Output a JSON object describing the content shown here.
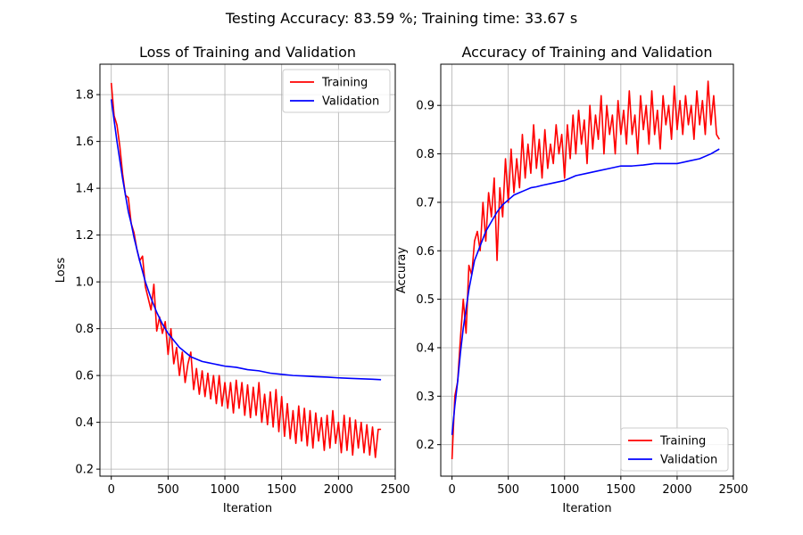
{
  "figure": {
    "suptitle": "Testing Accuracy: 83.59 %; Training time: 33.67 s"
  },
  "chart_data": [
    {
      "type": "line",
      "title": "Loss of Training and Validation",
      "xlabel": "Iteration",
      "ylabel": "Loss",
      "xlim": [
        -100,
        2500
      ],
      "ylim": [
        0.17,
        1.93
      ],
      "xticks": [
        0,
        500,
        1000,
        1500,
        2000,
        2500
      ],
      "yticks": [
        0.2,
        0.4,
        0.6,
        0.8,
        1.0,
        1.2,
        1.4,
        1.6,
        1.8
      ],
      "xtick_labels": [
        "0",
        "500",
        "1000",
        "1500",
        "2000",
        "2500"
      ],
      "ytick_labels": [
        "0.2",
        "0.4",
        "0.6",
        "0.8",
        "1.0",
        "1.2",
        "1.4",
        "1.6",
        "1.8"
      ],
      "grid": true,
      "legend_position": "top-right",
      "series": [
        {
          "name": "Training",
          "color": "#ff0000",
          "x": [
            0,
            25,
            50,
            75,
            100,
            125,
            150,
            175,
            200,
            225,
            250,
            275,
            300,
            325,
            350,
            375,
            400,
            425,
            450,
            475,
            500,
            525,
            550,
            575,
            600,
            625,
            650,
            675,
            700,
            725,
            750,
            775,
            800,
            825,
            850,
            875,
            900,
            925,
            950,
            975,
            1000,
            1025,
            1050,
            1075,
            1100,
            1125,
            1150,
            1175,
            1200,
            1225,
            1250,
            1275,
            1300,
            1325,
            1350,
            1375,
            1400,
            1425,
            1450,
            1475,
            1500,
            1525,
            1550,
            1575,
            1600,
            1625,
            1650,
            1675,
            1700,
            1725,
            1750,
            1775,
            1800,
            1825,
            1850,
            1875,
            1900,
            1925,
            1950,
            1975,
            2000,
            2025,
            2050,
            2075,
            2100,
            2125,
            2150,
            2175,
            2200,
            2225,
            2250,
            2275,
            2300,
            2325,
            2350,
            2375
          ],
          "values": [
            1.85,
            1.71,
            1.67,
            1.58,
            1.46,
            1.37,
            1.36,
            1.25,
            1.21,
            1.14,
            1.09,
            1.11,
            0.98,
            0.93,
            0.88,
            0.99,
            0.79,
            0.85,
            0.78,
            0.83,
            0.69,
            0.8,
            0.65,
            0.72,
            0.6,
            0.7,
            0.57,
            0.65,
            0.7,
            0.54,
            0.63,
            0.52,
            0.62,
            0.51,
            0.61,
            0.5,
            0.6,
            0.48,
            0.6,
            0.47,
            0.57,
            0.46,
            0.57,
            0.44,
            0.58,
            0.46,
            0.57,
            0.43,
            0.56,
            0.42,
            0.55,
            0.43,
            0.57,
            0.4,
            0.52,
            0.39,
            0.53,
            0.38,
            0.54,
            0.36,
            0.51,
            0.34,
            0.48,
            0.33,
            0.45,
            0.31,
            0.47,
            0.32,
            0.46,
            0.3,
            0.45,
            0.29,
            0.44,
            0.32,
            0.42,
            0.28,
            0.43,
            0.29,
            0.45,
            0.31,
            0.4,
            0.27,
            0.43,
            0.28,
            0.42,
            0.26,
            0.41,
            0.29,
            0.4,
            0.27,
            0.39,
            0.26,
            0.38,
            0.25,
            0.37,
            0.37
          ]
        },
        {
          "name": "Validation",
          "color": "#0000ff",
          "x": [
            0,
            25,
            50,
            75,
            100,
            125,
            150,
            175,
            200,
            250,
            300,
            350,
            400,
            450,
            500,
            550,
            600,
            650,
            700,
            750,
            800,
            850,
            900,
            950,
            1000,
            1100,
            1200,
            1300,
            1400,
            1500,
            1600,
            1700,
            1800,
            1900,
            2000,
            2100,
            2200,
            2300,
            2375
          ],
          "values": [
            1.78,
            1.69,
            1.6,
            1.52,
            1.44,
            1.37,
            1.3,
            1.25,
            1.19,
            1.09,
            1.0,
            0.93,
            0.87,
            0.82,
            0.78,
            0.75,
            0.72,
            0.7,
            0.68,
            0.67,
            0.66,
            0.655,
            0.65,
            0.645,
            0.64,
            0.635,
            0.625,
            0.62,
            0.61,
            0.605,
            0.6,
            0.598,
            0.595,
            0.593,
            0.59,
            0.588,
            0.586,
            0.584,
            0.582
          ]
        }
      ]
    },
    {
      "type": "line",
      "title": "Accuracy of Training and Validation",
      "xlabel": "Iteration",
      "ylabel": "Accuray",
      "xlim": [
        -100,
        2500
      ],
      "ylim": [
        0.135,
        0.985
      ],
      "xticks": [
        0,
        500,
        1000,
        1500,
        2000,
        2500
      ],
      "yticks": [
        0.2,
        0.3,
        0.4,
        0.5,
        0.6,
        0.7,
        0.8,
        0.9
      ],
      "xtick_labels": [
        "0",
        "500",
        "1000",
        "1500",
        "2000",
        "2500"
      ],
      "ytick_labels": [
        "0.2",
        "0.3",
        "0.4",
        "0.5",
        "0.6",
        "0.7",
        "0.8",
        "0.9"
      ],
      "grid": true,
      "legend_position": "bottom-right",
      "series": [
        {
          "name": "Training",
          "color": "#ff0000",
          "x": [
            0,
            25,
            50,
            75,
            100,
            125,
            150,
            175,
            200,
            225,
            250,
            275,
            300,
            325,
            350,
            375,
            400,
            425,
            450,
            475,
            500,
            525,
            550,
            575,
            600,
            625,
            650,
            675,
            700,
            725,
            750,
            775,
            800,
            825,
            850,
            875,
            900,
            925,
            950,
            975,
            1000,
            1025,
            1050,
            1075,
            1100,
            1125,
            1150,
            1175,
            1200,
            1225,
            1250,
            1275,
            1300,
            1325,
            1350,
            1375,
            1400,
            1425,
            1450,
            1475,
            1500,
            1525,
            1550,
            1575,
            1600,
            1625,
            1650,
            1675,
            1700,
            1725,
            1750,
            1775,
            1800,
            1825,
            1850,
            1875,
            1900,
            1925,
            1950,
            1975,
            2000,
            2025,
            2050,
            2075,
            2100,
            2125,
            2150,
            2175,
            2200,
            2225,
            2250,
            2275,
            2300,
            2325,
            2350,
            2375
          ],
          "values": [
            0.17,
            0.3,
            0.33,
            0.42,
            0.5,
            0.43,
            0.57,
            0.55,
            0.62,
            0.64,
            0.6,
            0.7,
            0.62,
            0.72,
            0.67,
            0.75,
            0.58,
            0.73,
            0.67,
            0.79,
            0.7,
            0.81,
            0.72,
            0.79,
            0.73,
            0.84,
            0.75,
            0.82,
            0.76,
            0.86,
            0.77,
            0.83,
            0.75,
            0.85,
            0.77,
            0.82,
            0.78,
            0.86,
            0.8,
            0.84,
            0.75,
            0.86,
            0.79,
            0.88,
            0.8,
            0.89,
            0.82,
            0.87,
            0.78,
            0.9,
            0.81,
            0.88,
            0.83,
            0.92,
            0.8,
            0.9,
            0.84,
            0.88,
            0.8,
            0.91,
            0.84,
            0.89,
            0.82,
            0.93,
            0.84,
            0.88,
            0.8,
            0.92,
            0.85,
            0.9,
            0.82,
            0.93,
            0.84,
            0.89,
            0.81,
            0.92,
            0.86,
            0.9,
            0.83,
            0.94,
            0.85,
            0.91,
            0.84,
            0.92,
            0.86,
            0.9,
            0.83,
            0.93,
            0.86,
            0.91,
            0.84,
            0.95,
            0.86,
            0.92,
            0.84,
            0.83
          ]
        },
        {
          "name": "Validation",
          "color": "#0000ff",
          "x": [
            0,
            25,
            50,
            75,
            100,
            125,
            150,
            175,
            200,
            250,
            300,
            350,
            400,
            450,
            500,
            550,
            600,
            650,
            700,
            750,
            800,
            900,
            1000,
            1100,
            1200,
            1300,
            1400,
            1500,
            1600,
            1700,
            1800,
            1900,
            2000,
            2100,
            2200,
            2300,
            2375
          ],
          "values": [
            0.22,
            0.28,
            0.33,
            0.39,
            0.44,
            0.48,
            0.52,
            0.55,
            0.58,
            0.61,
            0.64,
            0.66,
            0.68,
            0.695,
            0.705,
            0.715,
            0.72,
            0.725,
            0.73,
            0.732,
            0.735,
            0.74,
            0.745,
            0.755,
            0.76,
            0.765,
            0.77,
            0.775,
            0.775,
            0.777,
            0.78,
            0.78,
            0.78,
            0.785,
            0.79,
            0.8,
            0.81
          ]
        }
      ]
    }
  ]
}
